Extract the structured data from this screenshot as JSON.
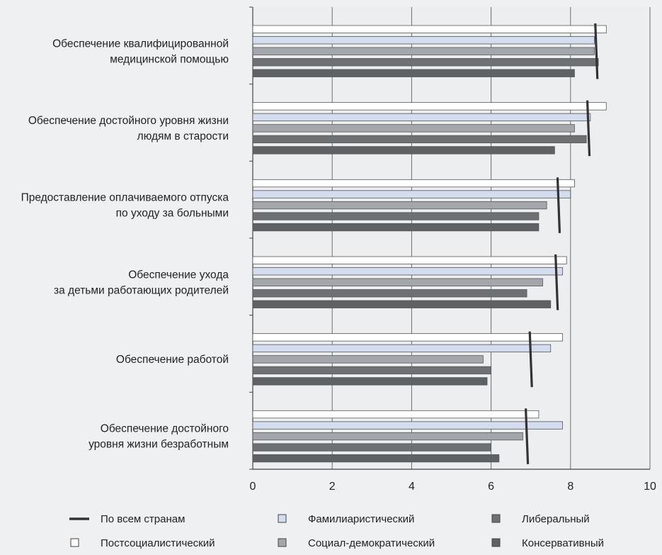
{
  "chart_data": {
    "type": "bar",
    "orientation": "horizontal",
    "categories": [
      [
        "Обеспечение квалифицированной",
        "медицинской помощью"
      ],
      [
        "Обеспечение достойного уровня жизни",
        "людям в старости"
      ],
      [
        "Предоставление оплачиваемого отпуска",
        "по уходу за больными"
      ],
      [
        "Обеспечение ухода",
        "за детьми работающих родителей"
      ],
      [
        "Обеспечение работой"
      ],
      [
        "Обеспечение достойного",
        "уровня жизни безработным"
      ]
    ],
    "series": [
      {
        "name": "Постсоциалистический",
        "color": "#ffffff",
        "values": [
          8.9,
          8.9,
          8.1,
          7.9,
          7.8,
          7.2
        ]
      },
      {
        "name": "Фамилиаристический",
        "color": "#d4dcf0",
        "values": [
          8.6,
          8.5,
          8.0,
          7.8,
          7.5,
          7.8
        ]
      },
      {
        "name": "Социал-демократический",
        "color": "#a3a7ac",
        "values": [
          8.6,
          8.1,
          7.4,
          7.3,
          5.8,
          6.8
        ]
      },
      {
        "name": "Либеральный",
        "color": "#6d7174",
        "values": [
          8.7,
          8.4,
          7.2,
          6.9,
          6.0,
          6.0
        ]
      },
      {
        "name": "Консервативный",
        "color": "#5e6265",
        "values": [
          8.1,
          7.6,
          7.2,
          7.5,
          5.9,
          6.2
        ]
      }
    ],
    "average": {
      "name": "По всем странам",
      "color": "#333333",
      "values": [
        8.65,
        8.45,
        7.7,
        7.65,
        7.0,
        6.9
      ]
    },
    "xlim": [
      0,
      10
    ],
    "xticks": [
      "0",
      "2",
      "4",
      "6",
      "8",
      "10"
    ],
    "grid": "vertical",
    "legend_position": "bottom",
    "legend_order": [
      "По всем странам",
      "Постсоциалистический",
      "Фамилиаристический",
      "Социал-демократический",
      "Либеральный",
      "Консервативный"
    ]
  }
}
